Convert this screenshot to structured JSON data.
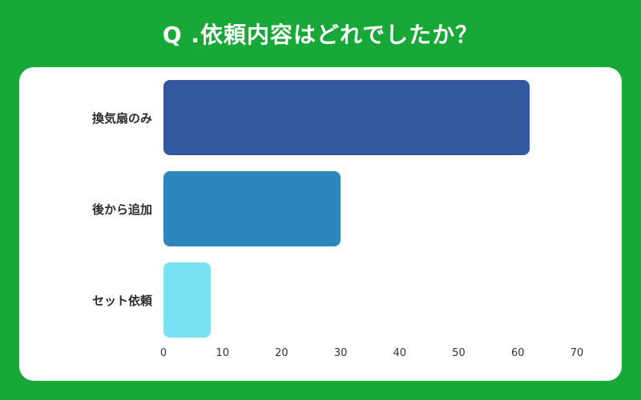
{
  "page": {
    "background_color": "#18a838",
    "card_color": "#ffffff"
  },
  "header": {
    "title": "Q .依頼内容はどれでしたか？",
    "title_color": "#ffffff"
  },
  "chart_data": {
    "type": "bar",
    "orientation": "horizontal",
    "title": "Q .依頼内容はどれでしたか？",
    "categories": [
      "換気扇のみ",
      "後から追加",
      "セット依頼"
    ],
    "values": [
      62,
      30,
      8
    ],
    "bar_colors": [
      "#33589e",
      "#2e86be",
      "#79e2f2"
    ],
    "xlabel": "",
    "ylabel": "",
    "xlim": [
      0,
      70
    ],
    "x_ticks": [
      0,
      10,
      20,
      30,
      40,
      50,
      60,
      70
    ],
    "grid": false,
    "legend": false
  }
}
